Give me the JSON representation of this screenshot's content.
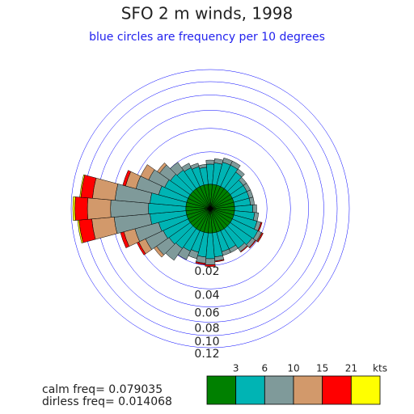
{
  "chart_data": {
    "type": "windrose",
    "title": "SFO 2 m winds, 1998",
    "subtitle": "blue circles are frequency per 10 degrees",
    "annotations": [
      "calm freq= 0.079035",
      "dirless freq= 0.014068"
    ],
    "x": [
      0,
      10,
      20,
      30,
      40,
      50,
      60,
      70,
      80,
      90,
      100,
      110,
      120,
      130,
      140,
      150,
      160,
      170,
      180,
      190,
      200,
      210,
      220,
      230,
      240,
      250,
      260,
      270,
      280,
      290,
      300,
      310,
      320,
      330,
      340,
      350
    ],
    "rlim": [
      0,
      0.12
    ],
    "rticks": [
      0.02,
      0.04,
      0.06,
      0.08,
      {
        "value": 0.1,
        "label": "0.10"
      },
      0.12
    ],
    "grid_color": "#0000ff",
    "colorbar": {
      "ticks": [
        3,
        6,
        10,
        15,
        21
      ],
      "label": "kts"
    },
    "series": [
      {
        "color": "#008000",
        "values": [
          0.0037,
          0.0037,
          0.0037,
          0.0037,
          0.0037,
          0.0037,
          0.0037,
          0.0037,
          0.0037,
          0.0037,
          0.0037,
          0.0037,
          0.0037,
          0.0037,
          0.0037,
          0.0037,
          0.0037,
          0.0037,
          0.0037,
          0.0037,
          0.0037,
          0.0037,
          0.0037,
          0.0037,
          0.0037,
          0.0037,
          0.0037,
          0.0037,
          0.0037,
          0.0037,
          0.0037,
          0.0037,
          0.0037,
          0.0037,
          0.0037,
          0.0037
        ]
      },
      {
        "color": "#00b4b4",
        "values": [
          0.0086,
          0.0094,
          0.0106,
          0.0106,
          0.0086,
          0.0064,
          0.0064,
          0.0064,
          0.0064,
          0.0075,
          0.0086,
          0.0109,
          0.0134,
          0.0125,
          0.0109,
          0.0086,
          0.0086,
          0.0109,
          0.0119,
          0.011,
          0.009,
          0.01,
          0.011,
          0.012,
          0.013,
          0.014,
          0.019,
          0.02,
          0.019,
          0.014,
          0.012,
          0.011,
          0.01,
          0.009,
          0.008,
          0.007
        ]
      },
      {
        "color": "#7f9a9a",
        "values": [
          0.0023,
          0.0025,
          0.0028,
          0.0028,
          0.0023,
          0.0021,
          0.0021,
          0.0021,
          0.0021,
          0.0022,
          0.0023,
          0.0025,
          0.0027,
          0.0026,
          0.0025,
          0.0023,
          0.0023,
          0.0026,
          0.004,
          0.004,
          0.004,
          0.006,
          0.01,
          0.011,
          0.015,
          0.02,
          0.035,
          0.038,
          0.034,
          0.019,
          0.013,
          0.009,
          0.0062,
          0.0029,
          0.002,
          0.0016
        ]
      },
      {
        "color": "#d2996b",
        "values": [
          0,
          0,
          0,
          0,
          0,
          0,
          0,
          0,
          0,
          0,
          0,
          0,
          0.0006,
          0,
          0,
          0,
          0,
          0,
          0,
          0,
          0,
          0,
          0,
          0.0026,
          0.0069,
          0.012,
          0.03,
          0.032,
          0.03,
          0.011,
          0.0079,
          0.0023,
          0,
          0,
          0,
          0
        ]
      },
      {
        "color": "#ff0000",
        "values": [
          0,
          0,
          0,
          0,
          0,
          0,
          0,
          0,
          0,
          0,
          0,
          0.0008,
          0.0008,
          0.0006,
          0.0005,
          0,
          0,
          0.0006,
          0.0012,
          0.001,
          0,
          0,
          0,
          0,
          0.002,
          0.0039,
          0.02,
          0.02,
          0.018,
          0.0032,
          0,
          0,
          0,
          0,
          0,
          0
        ]
      },
      {
        "color": "#ffff00",
        "values": [
          0,
          0,
          0,
          0,
          0,
          0,
          0,
          0,
          0,
          0,
          0,
          0,
          0,
          0,
          0,
          0,
          0,
          0,
          0,
          0,
          0,
          0,
          0,
          0,
          0,
          0,
          0.0023,
          0.0035,
          0.0018,
          0,
          0,
          0,
          0,
          0,
          0,
          0
        ]
      }
    ]
  }
}
